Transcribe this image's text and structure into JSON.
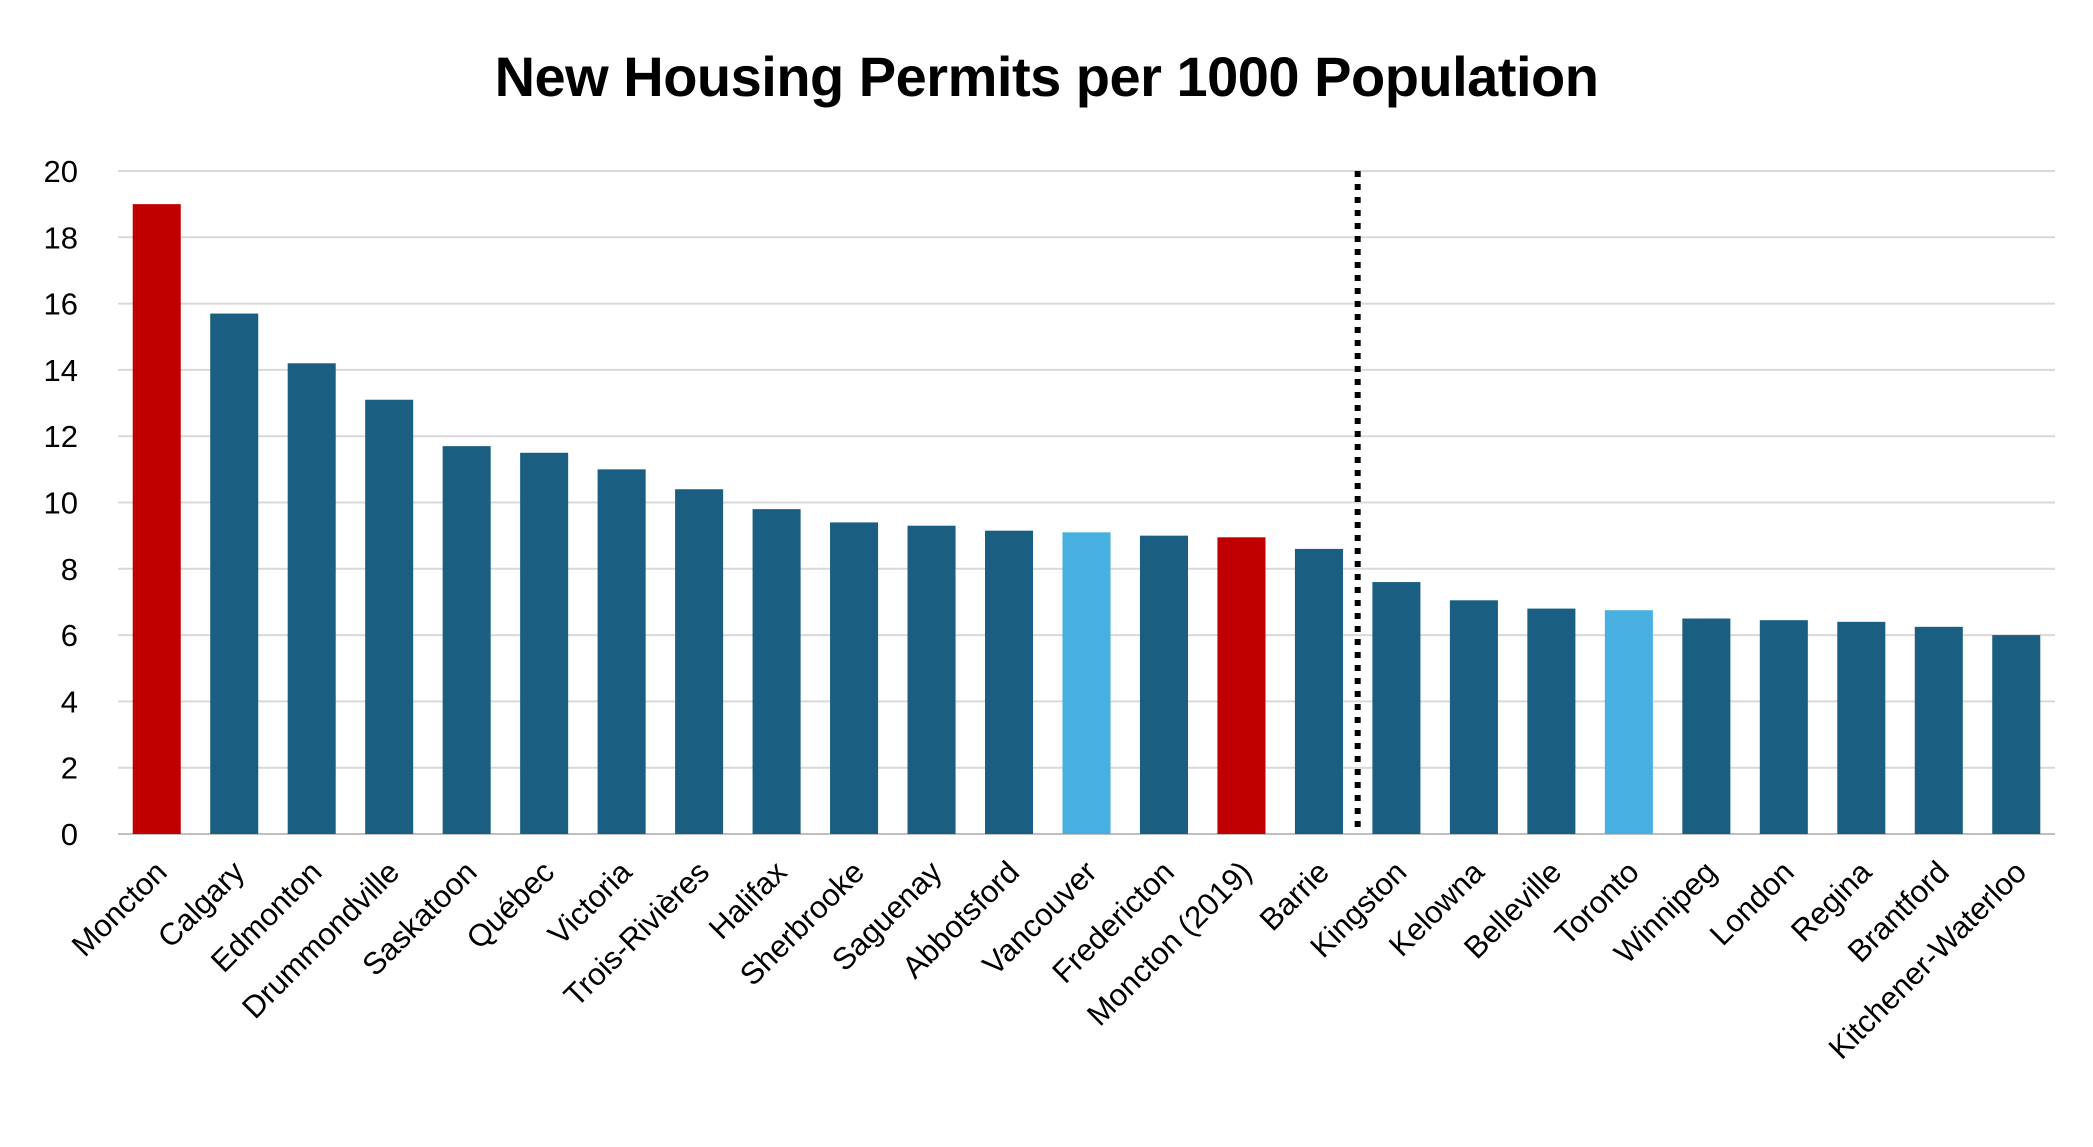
{
  "chart_data": {
    "type": "bar",
    "title": "New Housing Permits per 1000 Population",
    "categories": [
      "Moncton",
      "Calgary",
      "Edmonton",
      "Drummondville",
      "Saskatoon",
      "Québec",
      "Victoria",
      "Trois-Rivières",
      "Halifax",
      "Sherbrooke",
      "Saguenay",
      "Abbotsford",
      "Vancouver",
      "Fredericton",
      "Moncton (2019)",
      "Barrie",
      "Kingston",
      "Kelowna",
      "Belleville",
      "Toronto",
      "Winnipeg",
      "London",
      "Regina",
      "Brantford",
      "Kitchener-Waterloo"
    ],
    "values": [
      19.0,
      15.7,
      14.2,
      13.1,
      11.7,
      11.5,
      11.0,
      10.4,
      9.8,
      9.4,
      9.3,
      9.15,
      9.1,
      9.0,
      8.95,
      8.6,
      7.6,
      7.05,
      6.8,
      6.75,
      6.5,
      6.45,
      6.4,
      6.25,
      6.0
    ],
    "bar_colors": [
      "#c00000",
      "#1a5f82",
      "#1a5f82",
      "#1a5f82",
      "#1a5f82",
      "#1a5f82",
      "#1a5f82",
      "#1a5f82",
      "#1a5f82",
      "#1a5f82",
      "#1a5f82",
      "#1a5f82",
      "#47b0e0",
      "#1a5f82",
      "#c00000",
      "#1a5f82",
      "#1a5f82",
      "#1a5f82",
      "#1a5f82",
      "#47b0e0",
      "#1a5f82",
      "#1a5f82",
      "#1a5f82",
      "#1a5f82",
      "#1a5f82"
    ],
    "yticks": [
      "0",
      "2",
      "4",
      "6",
      "8",
      "10",
      "12",
      "14",
      "16",
      "18",
      "20"
    ],
    "ylim": [
      0,
      20
    ],
    "xlabel": "",
    "ylabel": "",
    "grid": true,
    "legend": "none",
    "divider_after_category": "Barrie",
    "colors": {
      "gridline": "#d9d9d9",
      "axis": "#bfbfbf",
      "divider": "#000000"
    }
  }
}
